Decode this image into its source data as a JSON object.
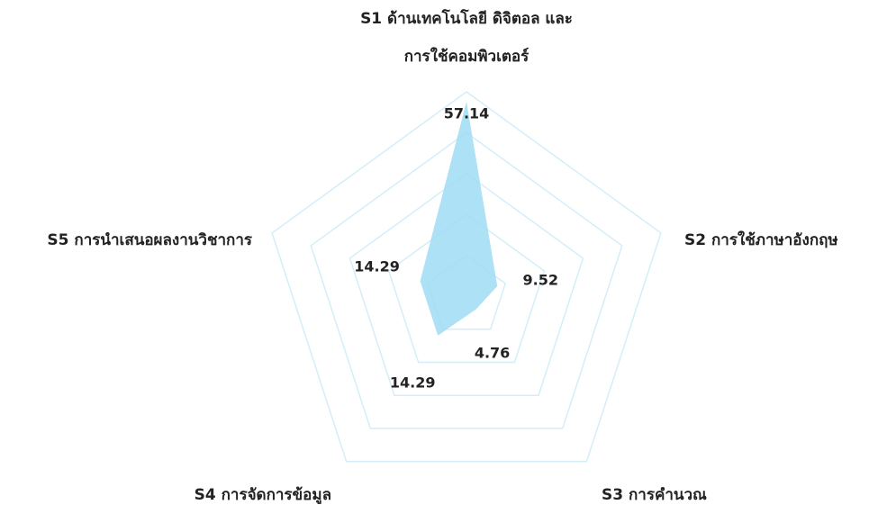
{
  "chart_data": {
    "type": "radar",
    "categories": [
      "S1 ด้านเทคโนโลยี ดิจิตอล และ\nการใช้คอมพิวเตอร์",
      "S2 การใช้ภาษาอังกฤษ",
      "S3 การคำนวณ",
      "S4 การจัดการข้อมูล",
      "S5 การนำเสนอผลงานวิชาการ"
    ],
    "series": [
      {
        "color": "#9fdcf4",
        "values": [
          57.14,
          9.52,
          4.76,
          14.29,
          14.29
        ]
      }
    ],
    "rlim": [
      0,
      60
    ],
    "rings": 5,
    "grid_color": "#d4eef9"
  }
}
